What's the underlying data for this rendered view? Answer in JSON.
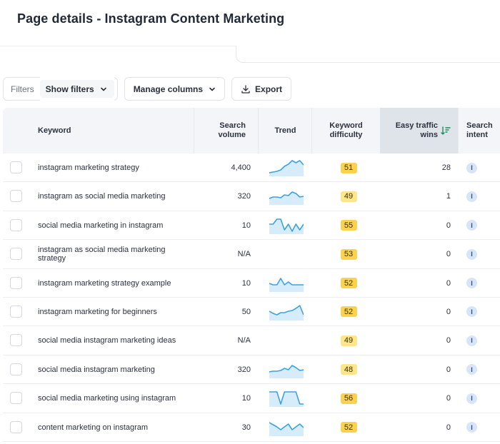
{
  "page": {
    "title": "Page details - Instagram Content Marketing"
  },
  "toolbar": {
    "filters_label": "Filters",
    "show_filters": "Show filters",
    "manage_columns": "Manage columns",
    "export": "Export"
  },
  "table": {
    "headers": {
      "keyword": "Keyword",
      "search_volume_1": "Search",
      "search_volume_2": "volume",
      "trend": "Trend",
      "kd_1": "Keyword",
      "kd_2": "difficulty",
      "etw_1": "Easy traffic",
      "etw_2": "wins",
      "intent_1": "Search",
      "intent_2": "intent"
    },
    "rows": [
      {
        "keyword": "instagram marketing strategy",
        "volume": "4,400",
        "kd": "51",
        "kd_color": "#fbd24f",
        "etw": "28",
        "intent": "I",
        "trend": [
          0.15,
          0.2,
          0.25,
          0.35,
          0.6,
          0.75,
          1.0,
          0.85,
          1.0,
          0.7
        ]
      },
      {
        "keyword": "instagram as social media marketing",
        "volume": "320",
        "kd": "49",
        "kd_color": "#fde68a",
        "etw": "1",
        "intent": "I",
        "trend": [
          0.35,
          0.45,
          0.45,
          0.4,
          0.6,
          0.55,
          0.8,
          0.7,
          0.45,
          0.5
        ]
      },
      {
        "keyword": "social media marketing in instagram",
        "volume": "10",
        "kd": "55",
        "kd_color": "#fbd24f",
        "etw": "0",
        "intent": "I",
        "trend": [
          0.6,
          0.6,
          0.95,
          0.95,
          0.2,
          0.6,
          0.1,
          0.6,
          0.2,
          0.6
        ]
      },
      {
        "keyword": "instagram as social media marketing strategy",
        "volume": "N/A",
        "kd": "53",
        "kd_color": "#fbd24f",
        "etw": "0",
        "intent": "I",
        "trend": []
      },
      {
        "keyword": "instagram marketing strategy example",
        "volume": "10",
        "kd": "52",
        "kd_color": "#fbd24f",
        "etw": "0",
        "intent": "I",
        "trend": [
          0.5,
          0.4,
          0.4,
          0.85,
          0.4,
          0.6,
          0.4,
          0.4,
          0.4,
          0.4
        ]
      },
      {
        "keyword": "instagram marketing for beginners",
        "volume": "50",
        "kd": "52",
        "kd_color": "#fbd24f",
        "etw": "0",
        "intent": "I",
        "trend": [
          0.55,
          0.4,
          0.3,
          0.45,
          0.45,
          0.55,
          0.6,
          0.75,
          0.95,
          0.3
        ]
      },
      {
        "keyword": "social media instagram marketing ideas",
        "volume": "N/A",
        "kd": "49",
        "kd_color": "#fde68a",
        "etw": "0",
        "intent": "I",
        "trend": []
      },
      {
        "keyword": "social media instagram marketing",
        "volume": "320",
        "kd": "48",
        "kd_color": "#fde68a",
        "etw": "0",
        "intent": "I",
        "trend": [
          0.35,
          0.4,
          0.4,
          0.45,
          0.6,
          0.5,
          0.8,
          0.65,
          0.45,
          0.5
        ]
      },
      {
        "keyword": "social media marketing using instagram",
        "volume": "10",
        "kd": "56",
        "kd_color": "#fbd24f",
        "etw": "0",
        "intent": "I",
        "trend": [
          0.95,
          0.95,
          0.95,
          0.1,
          0.95,
          0.95,
          0.95,
          0.95,
          0.1,
          0.1
        ]
      },
      {
        "keyword": "content marketing on instagram",
        "volume": "30",
        "kd": "52",
        "kd_color": "#fbd24f",
        "etw": "0",
        "intent": "I",
        "trend": [
          0.85,
          0.7,
          0.55,
          0.35,
          0.55,
          0.75,
          0.35,
          0.55,
          0.75,
          0.5
        ]
      }
    ]
  },
  "colors": {
    "accent": "#3aa3e3",
    "trend_fill": "#d6ecfa",
    "sort_icon": "#1f8f5a",
    "intent_bg": "#d8e4f7"
  }
}
